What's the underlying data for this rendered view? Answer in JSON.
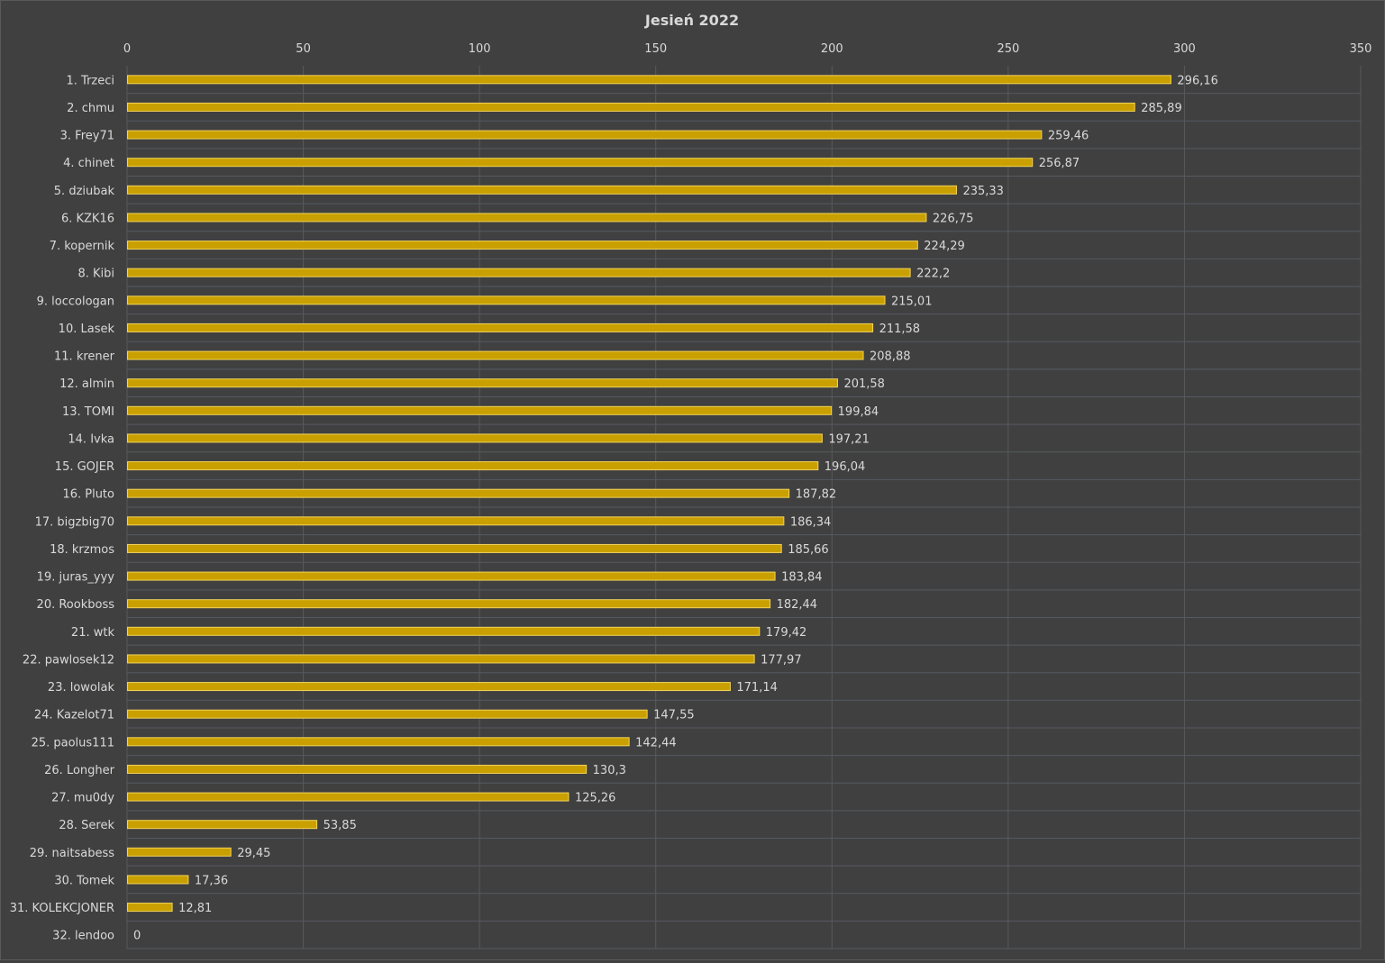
{
  "chart_data": {
    "type": "bar",
    "orientation": "horizontal",
    "title": "Jesień 2022",
    "xlabel": "",
    "ylabel": "",
    "xlim": [
      0,
      350
    ],
    "ticks": [
      "0",
      "50",
      "100",
      "150",
      "200",
      "250",
      "300",
      "350"
    ],
    "tick_values": [
      0,
      50,
      100,
      150,
      200,
      250,
      300,
      350
    ],
    "axis_position": "top",
    "grid": true,
    "legend": "none",
    "bar_color": "#c9a000",
    "categories": [
      "1. Trzeci",
      "2. chmu",
      "3. Frey71",
      "4. chinet",
      "5. dziubak",
      "6. KZK16",
      "7. kopernik",
      "8. Kibi",
      "9. loccologan",
      "10. Lasek",
      "11. krener",
      "12. almin",
      "13. TOMI",
      "14. Ivka",
      "15. GOJER",
      "16. Pluto",
      "17. bigzbig70",
      "18. krzmos",
      "19. juras_yyy",
      "20. Rookboss",
      "21. wtk",
      "22. pawlosek12",
      "23. lowolak",
      "24. Kazelot71",
      "25. paolus111",
      "26. Longher",
      "27. mu0dy",
      "28. Serek",
      "29. naitsabess",
      "30. Tomek",
      "31. KOLEKCJONER",
      "32. lendoo"
    ],
    "values": [
      296.16,
      285.89,
      259.46,
      256.87,
      235.33,
      226.75,
      224.29,
      222.2,
      215.01,
      211.58,
      208.88,
      201.58,
      199.84,
      197.21,
      196.04,
      187.82,
      186.34,
      185.66,
      183.84,
      182.44,
      179.42,
      177.97,
      171.14,
      147.55,
      142.44,
      130.3,
      125.26,
      53.85,
      29.45,
      17.36,
      12.81,
      0
    ],
    "value_labels": [
      "296,16",
      "285,89",
      "259,46",
      "256,87",
      "235,33",
      "226,75",
      "224,29",
      "222,2",
      "215,01",
      "211,58",
      "208,88",
      "201,58",
      "199,84",
      "197,21",
      "196,04",
      "187,82",
      "186,34",
      "185,66",
      "183,84",
      "182,44",
      "179,42",
      "177,97",
      "171,14",
      "147,55",
      "142,44",
      "130,3",
      "125,26",
      "53,85",
      "29,45",
      "17,36",
      "12,81",
      "0"
    ]
  }
}
